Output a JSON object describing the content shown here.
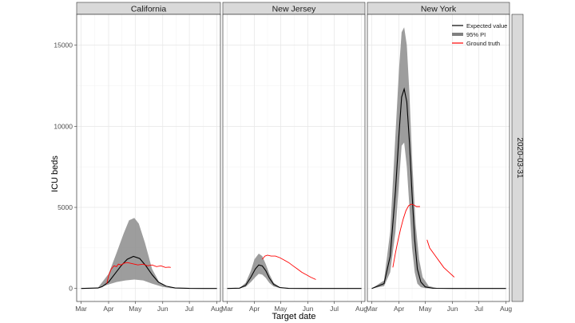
{
  "chart_data": {
    "type": "line",
    "row_strip": "2020-03-31",
    "xlabel": "Target date",
    "ylabel": "ICU beds",
    "x_ticks": [
      "Mar",
      "Apr",
      "May",
      "Jun",
      "Jul",
      "Aug"
    ],
    "x_tick_dates": [
      "2020-03-01",
      "2020-04-01",
      "2020-05-01",
      "2020-06-01",
      "2020-07-01",
      "2020-08-01"
    ],
    "x_range": [
      "2020-02-25",
      "2020-08-05"
    ],
    "y_ticks": [
      0,
      5000,
      10000,
      15000
    ],
    "ylim": [
      -800,
      16900
    ],
    "grid": true,
    "legend": {
      "position": "top-right",
      "entries": [
        {
          "label": "Expected value",
          "color": "#000000"
        },
        {
          "label": "95% PI",
          "color": "#808080"
        },
        {
          "label": "Ground truth",
          "color": "#ff0000"
        }
      ]
    },
    "panels": [
      {
        "name": "California",
        "expected": {
          "x": [
            "2020-03-01",
            "2020-03-20",
            "2020-03-25",
            "2020-04-01",
            "2020-04-08",
            "2020-04-15",
            "2020-04-22",
            "2020-04-29",
            "2020-05-06",
            "2020-05-13",
            "2020-05-20",
            "2020-05-27",
            "2020-06-05",
            "2020-06-15",
            "2020-07-01",
            "2020-08-01"
          ],
          "y": [
            0,
            30,
            120,
            400,
            900,
            1400,
            1800,
            1980,
            1850,
            1400,
            850,
            400,
            140,
            30,
            5,
            0
          ]
        },
        "pi_upper": {
          "x": [
            "2020-03-01",
            "2020-03-20",
            "2020-04-01",
            "2020-04-10",
            "2020-04-18",
            "2020-04-24",
            "2020-04-30",
            "2020-05-05",
            "2020-05-12",
            "2020-05-20",
            "2020-05-28",
            "2020-06-05",
            "2020-06-15",
            "2020-07-01",
            "2020-08-01"
          ],
          "y": [
            0,
            50,
            900,
            2200,
            3400,
            4200,
            4350,
            4000,
            2800,
            1200,
            400,
            100,
            20,
            0,
            0
          ]
        },
        "pi_lower": {
          "x": [
            "2020-03-01",
            "2020-03-20",
            "2020-04-01",
            "2020-04-10",
            "2020-04-20",
            "2020-04-30",
            "2020-05-10",
            "2020-05-20",
            "2020-06-01",
            "2020-06-10",
            "2020-07-01",
            "2020-08-01"
          ],
          "y": [
            0,
            20,
            250,
            400,
            500,
            550,
            500,
            300,
            100,
            20,
            0,
            0
          ]
        },
        "ground_truth": {
          "x": [
            "2020-03-30",
            "2020-04-01",
            "2020-04-04",
            "2020-04-07",
            "2020-04-10",
            "2020-04-12",
            "2020-04-15",
            "2020-04-18",
            "2020-04-22",
            "2020-04-26",
            "2020-04-30",
            "2020-05-04",
            "2020-05-10",
            "2020-05-15",
            "2020-05-20",
            "2020-05-25",
            "2020-05-30",
            "2020-06-04",
            "2020-06-08",
            "2020-06-10"
          ],
          "y": [
            300,
            800,
            1200,
            1400,
            1350,
            1500,
            1450,
            1550,
            1600,
            1550,
            1500,
            1450,
            1500,
            1400,
            1450,
            1350,
            1400,
            1300,
            1320,
            1300
          ]
        }
      },
      {
        "name": "New Jersey",
        "expected": {
          "x": [
            "2020-03-01",
            "2020-03-15",
            "2020-03-22",
            "2020-03-28",
            "2020-04-02",
            "2020-04-06",
            "2020-04-10",
            "2020-04-14",
            "2020-04-18",
            "2020-04-23",
            "2020-04-30",
            "2020-05-10",
            "2020-06-01",
            "2020-08-01"
          ],
          "y": [
            0,
            20,
            200,
            700,
            1200,
            1450,
            1400,
            1100,
            650,
            250,
            60,
            5,
            0,
            0
          ]
        },
        "pi_upper": {
          "x": [
            "2020-03-01",
            "2020-03-15",
            "2020-03-22",
            "2020-03-28",
            "2020-04-01",
            "2020-04-06",
            "2020-04-10",
            "2020-04-14",
            "2020-04-18",
            "2020-04-23",
            "2020-04-30",
            "2020-05-10",
            "2020-06-01",
            "2020-08-01"
          ],
          "y": [
            0,
            30,
            350,
            1100,
            1800,
            2150,
            2000,
            1500,
            900,
            350,
            80,
            10,
            0,
            0
          ]
        },
        "pi_lower": {
          "x": [
            "2020-03-01",
            "2020-03-15",
            "2020-03-22",
            "2020-03-28",
            "2020-04-02",
            "2020-04-06",
            "2020-04-10",
            "2020-04-14",
            "2020-04-18",
            "2020-04-23",
            "2020-04-30",
            "2020-05-10",
            "2020-06-01",
            "2020-08-01"
          ],
          "y": [
            0,
            10,
            100,
            400,
            700,
            900,
            850,
            650,
            350,
            120,
            30,
            0,
            0,
            0
          ]
        },
        "ground_truth": {
          "x": [
            "2020-04-10",
            "2020-04-13",
            "2020-04-16",
            "2020-04-20",
            "2020-04-25",
            "2020-04-30",
            "2020-05-05",
            "2020-05-10",
            "2020-05-15",
            "2020-05-20",
            "2020-05-25",
            "2020-05-30",
            "2020-06-04",
            "2020-06-08",
            "2020-06-10"
          ],
          "y": [
            1800,
            2000,
            2050,
            2000,
            2000,
            1900,
            1750,
            1600,
            1400,
            1200,
            1000,
            850,
            700,
            600,
            550
          ]
        }
      },
      {
        "name": "New York",
        "expected": {
          "x": [
            "2020-03-01",
            "2020-03-15",
            "2020-03-22",
            "2020-03-28",
            "2020-04-01",
            "2020-04-04",
            "2020-04-07",
            "2020-04-10",
            "2020-04-13",
            "2020-04-16",
            "2020-04-19",
            "2020-04-22",
            "2020-04-26",
            "2020-05-01",
            "2020-05-10",
            "2020-06-01",
            "2020-08-01"
          ],
          "y": [
            0,
            300,
            2000,
            6000,
            9500,
            11800,
            12300,
            11500,
            9000,
            5800,
            3000,
            1200,
            400,
            100,
            10,
            0,
            0
          ]
        },
        "pi_upper": {
          "x": [
            "2020-03-01",
            "2020-03-15",
            "2020-03-22",
            "2020-03-28",
            "2020-04-01",
            "2020-04-04",
            "2020-04-07",
            "2020-04-10",
            "2020-04-13",
            "2020-04-16",
            "2020-04-20",
            "2020-04-24",
            "2020-04-28",
            "2020-05-05",
            "2020-05-15",
            "2020-06-01",
            "2020-08-01"
          ],
          "y": [
            0,
            500,
            3500,
            9500,
            13500,
            15800,
            16100,
            15000,
            12000,
            8000,
            4000,
            1800,
            700,
            150,
            20,
            0,
            0
          ]
        },
        "pi_lower": {
          "x": [
            "2020-03-01",
            "2020-03-15",
            "2020-03-22",
            "2020-03-28",
            "2020-04-01",
            "2020-04-04",
            "2020-04-07",
            "2020-04-10",
            "2020-04-13",
            "2020-04-16",
            "2020-04-19",
            "2020-04-22",
            "2020-04-26",
            "2020-05-01",
            "2020-05-10",
            "2020-06-01",
            "2020-08-01"
          ],
          "y": [
            0,
            150,
            1000,
            3500,
            6500,
            8800,
            9000,
            7500,
            5000,
            2500,
            1000,
            300,
            80,
            20,
            0,
            0,
            0
          ]
        },
        "ground_truth_segments": [
          {
            "x": [
              "2020-03-25",
              "2020-03-28",
              "2020-03-31",
              "2020-04-03",
              "2020-04-06",
              "2020-04-09",
              "2020-04-12",
              "2020-04-15",
              "2020-04-18",
              "2020-04-21",
              "2020-04-25"
            ],
            "y": [
              1300,
              2200,
              3000,
              3700,
              4300,
              4800,
              5100,
              5200,
              5150,
              5050,
              5050
            ]
          },
          {
            "x": [
              "2020-05-03",
              "2020-05-06",
              "2020-05-10",
              "2020-05-14",
              "2020-05-18",
              "2020-05-22",
              "2020-05-26",
              "2020-05-30",
              "2020-06-03"
            ],
            "y": [
              3000,
              2500,
              2200,
              1900,
              1600,
              1300,
              1100,
              900,
              700
            ]
          }
        ]
      }
    ]
  }
}
